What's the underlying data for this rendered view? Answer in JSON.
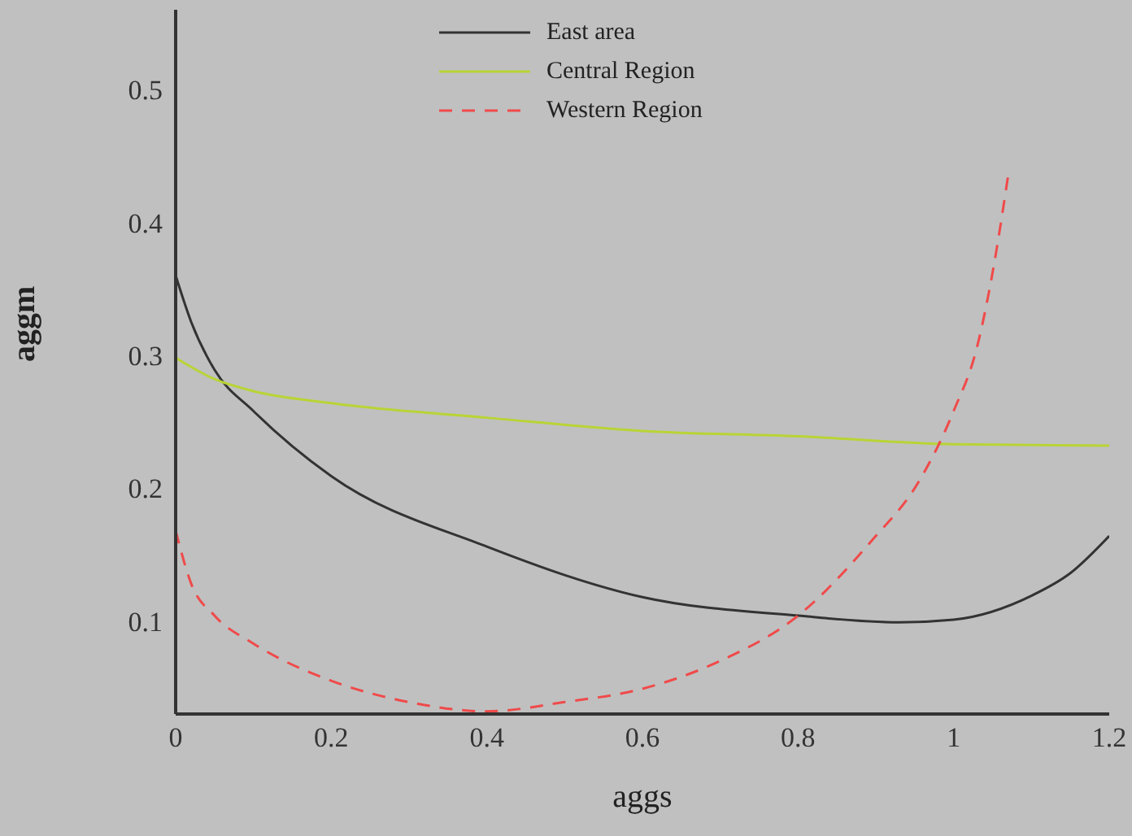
{
  "chart_data": {
    "type": "line",
    "xlabel": "aggs",
    "ylabel": "aggm",
    "xlim": [
      0,
      1.2
    ],
    "ylim": [
      0.03,
      0.56
    ],
    "xticks": [
      0,
      0.2,
      0.4,
      0.6,
      0.8,
      1,
      1.2
    ],
    "yticks": [
      0.1,
      0.2,
      0.3,
      0.4,
      0.5
    ],
    "grid": false,
    "legend": "top",
    "marker": "none",
    "series": [
      {
        "name": "East area",
        "color": "#333333",
        "line_style": "solid",
        "x": [
          0,
          0.02,
          0.05,
          0.1,
          0.2,
          0.4,
          0.6,
          0.8,
          0.93,
          1.0,
          1.1,
          1.15,
          1.2
        ],
        "values": [
          0.36,
          0.325,
          0.289,
          0.258,
          0.209,
          0.156,
          0.118,
          0.104,
          0.099,
          0.101,
          0.119,
          0.136,
          0.164
        ]
      },
      {
        "name": "Central Region",
        "color": "#b8d436",
        "line_style": "solid",
        "x": [
          0,
          0.05,
          0.1,
          0.2,
          0.4,
          0.6,
          0.8,
          1.0,
          1.2
        ],
        "values": [
          0.298,
          0.282,
          0.273,
          0.264,
          0.253,
          0.243,
          0.239,
          0.233,
          0.232
        ]
      },
      {
        "name": "Western Region",
        "color": "#f04a4a",
        "line_style": "dashed",
        "x": [
          0,
          0.02,
          0.05,
          0.1,
          0.2,
          0.3,
          0.4,
          0.5,
          0.6,
          0.7,
          0.8,
          0.9,
          0.95,
          1.0,
          1.03,
          1.05,
          1.07
        ],
        "values": [
          0.168,
          0.128,
          0.104,
          0.083,
          0.055,
          0.039,
          0.032,
          0.039,
          0.049,
          0.07,
          0.104,
          0.164,
          0.2,
          0.258,
          0.306,
          0.362,
          0.435
        ]
      }
    ]
  }
}
